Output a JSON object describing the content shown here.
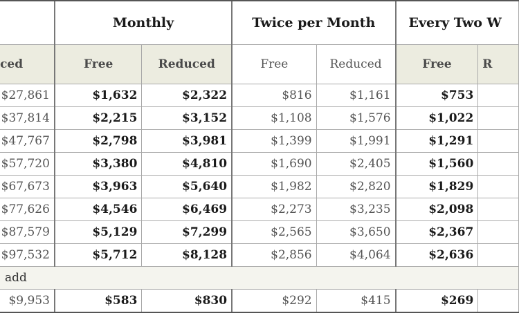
{
  "header_groups": {
    "first": "",
    "monthly": "Monthly",
    "twice": "Twice per Month",
    "every_two": "Every Two W"
  },
  "subheaders": {
    "first": "educed",
    "free": "Free",
    "reduced": "Reduced",
    "last": "R"
  },
  "rows": [
    {
      "c0": "$27,861",
      "c1": "$1,632",
      "c2": "$2,322",
      "c3": "$816",
      "c4": "$1,161",
      "c5": "$753"
    },
    {
      "c0": "$37,814",
      "c1": "$2,215",
      "c2": "$3,152",
      "c3": "$1,108",
      "c4": "$1,576",
      "c5": "$1,022"
    },
    {
      "c0": "$47,767",
      "c1": "$2,798",
      "c2": "$3,981",
      "c3": "$1,399",
      "c4": "$1,991",
      "c5": "$1,291"
    },
    {
      "c0": "$57,720",
      "c1": "$3,380",
      "c2": "$4,810",
      "c3": "$1,690",
      "c4": "$2,405",
      "c5": "$1,560"
    },
    {
      "c0": "$67,673",
      "c1": "$3,963",
      "c2": "$5,640",
      "c3": "$1,982",
      "c4": "$2,820",
      "c5": "$1,829"
    },
    {
      "c0": "$77,626",
      "c1": "$4,546",
      "c2": "$6,469",
      "c3": "$2,273",
      "c4": "$3,235",
      "c5": "$2,098"
    },
    {
      "c0": "$87,579",
      "c1": "$5,129",
      "c2": "$7,299",
      "c3": "$2,565",
      "c4": "$3,650",
      "c5": "$2,367"
    },
    {
      "c0": "$97,532",
      "c1": "$5,712",
      "c2": "$8,128",
      "c3": "$2,856",
      "c4": "$4,064",
      "c5": "$2,636"
    }
  ],
  "note": "ber, add",
  "last_row": {
    "c0": "$9,953",
    "c1": "$583",
    "c2": "$830",
    "c3": "$292",
    "c4": "$415",
    "c5": "$269"
  }
}
